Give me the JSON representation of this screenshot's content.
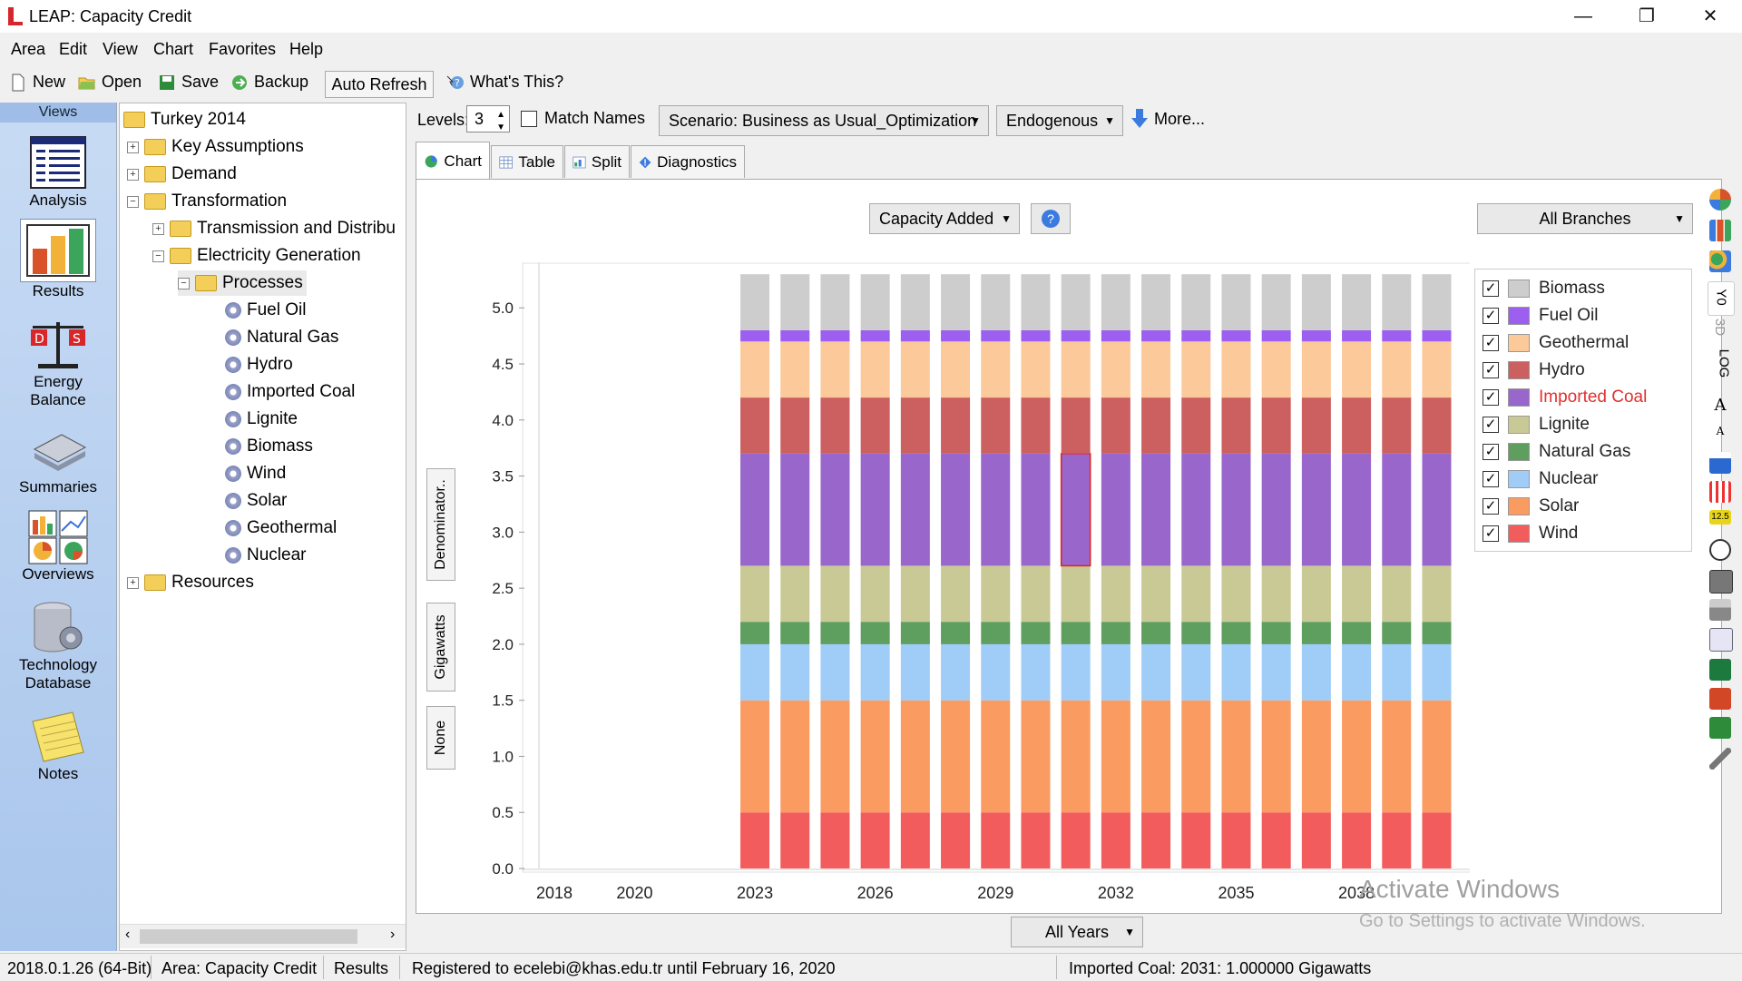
{
  "window": {
    "title": "LEAP: Capacity Credit",
    "minimize": "—",
    "restore": "❐",
    "close": "✕"
  },
  "menu": [
    "Area",
    "Edit",
    "View",
    "Chart",
    "Favorites",
    "Help"
  ],
  "toolbar": {
    "new": "New",
    "open": "Open",
    "save": "Save",
    "backup": "Backup",
    "auto_refresh": "Auto Refresh",
    "whats_this": "What's This?"
  },
  "views": {
    "header": "Views",
    "items": [
      {
        "label": "Analysis"
      },
      {
        "label": "Results"
      },
      {
        "label": "Energy Balance"
      },
      {
        "label": "Summaries"
      },
      {
        "label": "Overviews"
      },
      {
        "label": "Technology Database"
      },
      {
        "label": "Notes"
      }
    ]
  },
  "tree": {
    "root": "Turkey 2014",
    "items": {
      "key_assumptions": "Key Assumptions",
      "demand": "Demand",
      "transformation": "Transformation",
      "transmission": "Transmission and Distribu",
      "electricity_generation": "Electricity Generation",
      "processes": "Processes",
      "resources": "Resources"
    },
    "processes": [
      "Fuel Oil",
      "Natural Gas",
      "Hydro",
      "Imported Coal",
      "Lignite",
      "Biomass",
      "Wind",
      "Solar",
      "Geothermal",
      "Nuclear"
    ]
  },
  "controls": {
    "levels_label": "Levels:",
    "levels_value": "3",
    "match_names": "Match Names",
    "scenario": "Scenario: Business as Usual_Optimization",
    "endogenous": "Endogenous",
    "more": "More..."
  },
  "tabs": {
    "chart": "Chart",
    "table": "Table",
    "split": "Split",
    "diagnostics": "Diagnostics"
  },
  "chart_controls": {
    "measure": "Capacity Added",
    "help": "?",
    "branches": "All Branches",
    "years": "All Years"
  },
  "units": {
    "denominator": "Denominator..",
    "gigawatts": "Gigawatts",
    "none": "None"
  },
  "chart_data": {
    "type": "bar",
    "stacked": true,
    "x_ticks": [
      "2018",
      "2020",
      "2023",
      "2026",
      "2029",
      "2032",
      "2035",
      "2038"
    ],
    "y_ticks": [
      "0.0",
      "0.5",
      "1.0",
      "1.5",
      "2.0",
      "2.5",
      "3.0",
      "3.5",
      "4.0",
      "4.5",
      "5.0"
    ],
    "ylim": [
      0,
      5.35
    ],
    "categories": [
      2023,
      2024,
      2025,
      2026,
      2027,
      2028,
      2029,
      2030,
      2031,
      2032,
      2033,
      2034,
      2035,
      2036,
      2037,
      2038,
      2039,
      2040
    ],
    "series": [
      {
        "name": "Wind",
        "color": "#f35c5c",
        "value": 0.5
      },
      {
        "name": "Solar",
        "color": "#fa9b62",
        "value": 1.0
      },
      {
        "name": "Nuclear",
        "color": "#9fcdf7",
        "value": 0.5
      },
      {
        "name": "Natural Gas",
        "color": "#5e9e5e",
        "value": 0.2
      },
      {
        "name": "Lignite",
        "color": "#c9c995",
        "value": 0.5
      },
      {
        "name": "Imported Coal",
        "color": "#9966cc",
        "value": 1.0
      },
      {
        "name": "Hydro",
        "color": "#cc5f5f",
        "value": 0.5
      },
      {
        "name": "Geothermal",
        "color": "#fbc99a",
        "value": 0.5
      },
      {
        "name": "Fuel Oil",
        "color": "#9d5ff0",
        "value": 0.1
      },
      {
        "name": "Biomass",
        "color": "#cdcdcd",
        "value": 0.5
      }
    ],
    "highlight": {
      "series": "Imported Coal",
      "year": 2031
    }
  },
  "legend": [
    {
      "label": "Biomass",
      "color": "#cdcdcd",
      "checked": "✓"
    },
    {
      "label": "Fuel Oil",
      "color": "#9d5ff0",
      "checked": "✓"
    },
    {
      "label": "Geothermal",
      "color": "#fbc99a",
      "checked": "✓"
    },
    {
      "label": "Hydro",
      "color": "#cc5f5f",
      "checked": "✓"
    },
    {
      "label": "Imported Coal",
      "color": "#9966cc",
      "checked": "✓",
      "text_color": "#e23030"
    },
    {
      "label": "Lignite",
      "color": "#c9c995",
      "checked": "✓"
    },
    {
      "label": "Natural Gas",
      "color": "#5e9e5e",
      "checked": "✓"
    },
    {
      "label": "Nuclear",
      "color": "#9fcdf7",
      "checked": "✓"
    },
    {
      "label": "Solar",
      "color": "#fa9b62",
      "checked": "✓"
    },
    {
      "label": "Wind",
      "color": "#f35c5c",
      "checked": "✓"
    }
  ],
  "toolstrip": {
    "yo": "Y0",
    "three_d": "3D",
    "log": "LOG",
    "font_up": "A",
    "font_down": "A",
    "num": "12.5"
  },
  "status": {
    "version": "2018.0.1.26 (64-Bit)",
    "area": "Area: Capacity Credit",
    "view": "Results",
    "registered": "Registered to ecelebi@khas.edu.tr until February 16, 2020",
    "hover": "Imported Coal: 2031: 1.000000 Gigawatts"
  },
  "watermark": {
    "line1": "Activate Windows",
    "line2": "Go to Settings to activate Windows."
  }
}
